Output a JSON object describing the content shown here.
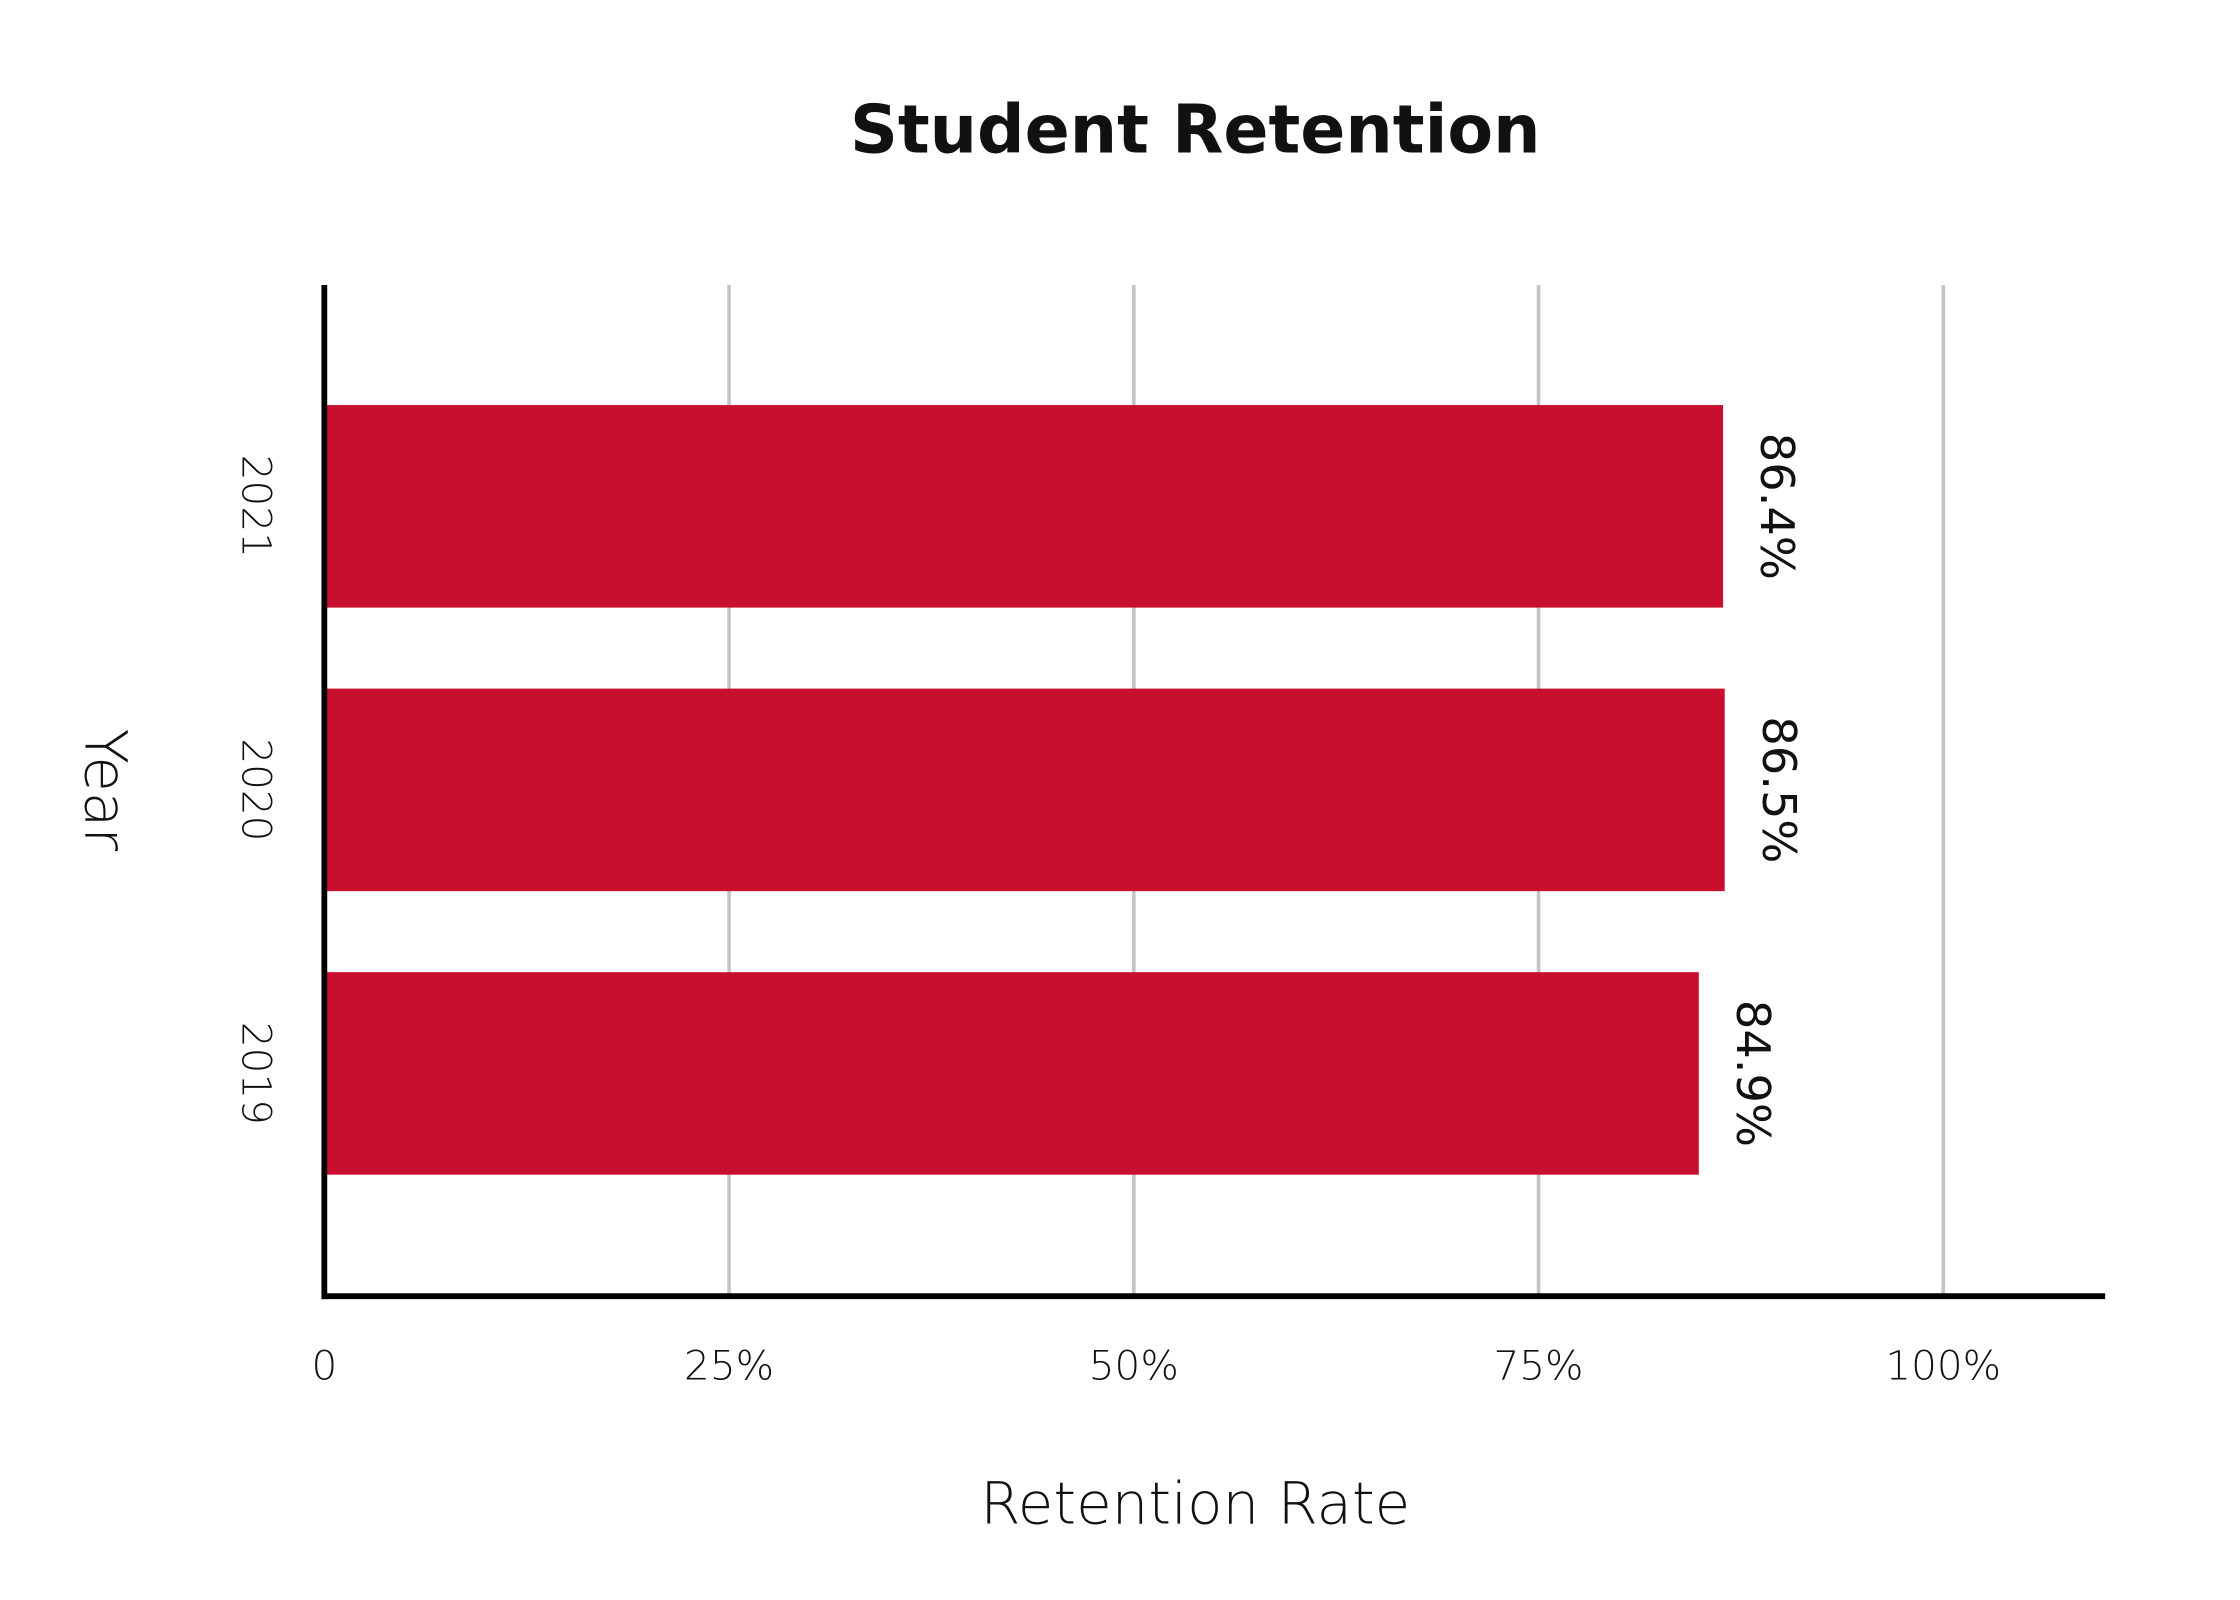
{
  "chart_data": {
    "type": "bar",
    "orientation": "horizontal",
    "title": "Student Retention",
    "x_label": "Retention Rate",
    "y_label": "Year",
    "categories": [
      "2019",
      "2020",
      "2021"
    ],
    "values": [
      84.9,
      86.5,
      86.4
    ],
    "value_labels": [
      "84.9%",
      "86.5%",
      "86.4%"
    ],
    "color": "#c8102e",
    "xlim": [
      0,
      110
    ],
    "xticks": [
      0,
      {
        "value": 25,
        "label": "25%"
      },
      {
        "value": 50,
        "label": "50%"
      },
      {
        "value": 75,
        "label": "75%"
      },
      {
        "value": 100,
        "label": "100%"
      }
    ],
    "grid": true
  }
}
